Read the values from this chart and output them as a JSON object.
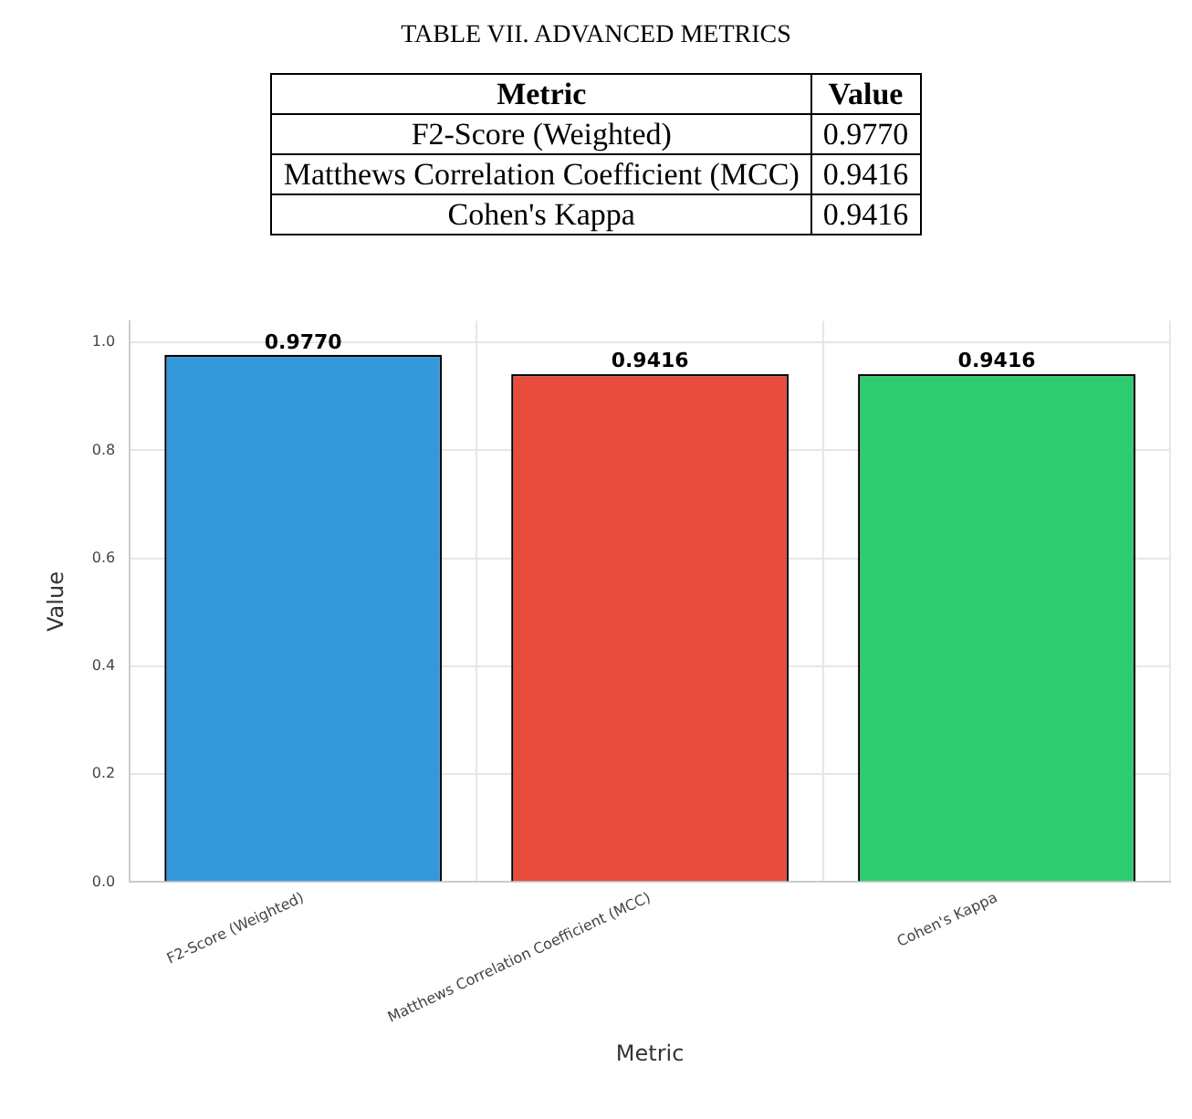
{
  "chart_data": {
    "type": "bar",
    "title": "TABLE VII. ADVANCED METRICS",
    "xlabel": "Metric",
    "ylabel": "Value",
    "categories": [
      "F2-Score (Weighted)",
      "Matthews Correlation Coefficient (MCC)",
      "Cohen's Kappa"
    ],
    "values": [
      0.977,
      0.9416,
      0.9416
    ],
    "colors": [
      "#3498db",
      "#e74c3c",
      "#2ecc71"
    ],
    "value_labels": [
      "0.9770",
      "0.9416",
      "0.9416"
    ],
    "ylim": [
      0,
      1.04
    ],
    "yticks": [
      {
        "value": 0,
        "label": "0.0"
      },
      {
        "value": 0.2,
        "label": "0.2"
      },
      {
        "value": 0.4,
        "label": "0.4"
      },
      {
        "value": 0.6,
        "label": "0.6"
      },
      {
        "value": 0.8,
        "label": "0.8"
      },
      {
        "value": 1,
        "label": "1.0"
      }
    ],
    "grid": true,
    "legend": false
  }
}
